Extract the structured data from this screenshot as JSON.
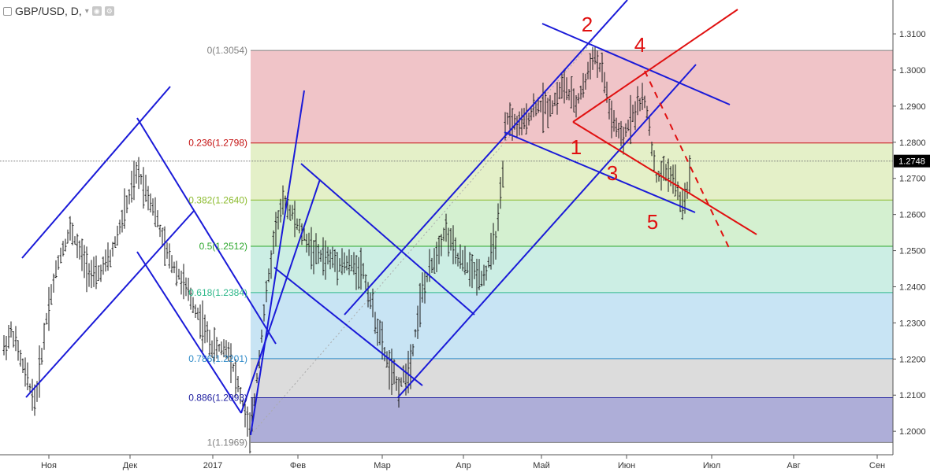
{
  "header": {
    "symbol_label": "GBP/USD, D,",
    "settings_icon": "gear-icon",
    "eye_icon": "eye-icon"
  },
  "price_axis": {
    "current_price": "1.2748",
    "current_color": "#000000"
  },
  "chart_data": {
    "type": "candlestick-ohlc",
    "instrument": "GBP/USD",
    "timeframe": "D",
    "ylim": [
      1.1935,
      1.3172
    ],
    "y_ticks": [
      "1.3100",
      "1.3000",
      "1.2900",
      "1.2800",
      "1.2700",
      "1.2600",
      "1.2500",
      "1.2400",
      "1.2300",
      "1.2200",
      "1.2100",
      "1.2000"
    ],
    "x_ticks": [
      "Ноя",
      "Дек",
      "2017",
      "Фев",
      "Мар",
      "Апр",
      "Май",
      "Июн",
      "Июл",
      "Авг",
      "Сен"
    ],
    "fibonacci": [
      {
        "label": "0(1.3054)",
        "level": 1.3054,
        "color": "#808080",
        "fill": "#f0c4c8"
      },
      {
        "label": "0.236(1.2798)",
        "level": 1.2798,
        "color": "#c41010",
        "fill": "#e4f0c8"
      },
      {
        "label": "0.382(1.2640)",
        "level": 1.264,
        "color": "#8cbb2e",
        "fill": "#d4f0d0"
      },
      {
        "label": "0.5(1.2512)",
        "level": 1.2512,
        "color": "#2ea82e",
        "fill": "#cceee4"
      },
      {
        "label": "0.618(1.2384)",
        "level": 1.2384,
        "color": "#2eb88a",
        "fill": "#c8e4f4"
      },
      {
        "label": "0.786(1.2201)",
        "level": 1.2201,
        "color": "#2e8ac8",
        "fill": "#dcdcdc"
      },
      {
        "label": "0.886(1.2093)",
        "level": 1.2093,
        "color": "#1a1a9e",
        "fill": "#aeaed8"
      },
      {
        "label": "1(1.1969)",
        "level": 1.1969,
        "color": "#808080",
        "fill": null
      }
    ],
    "wave_labels": [
      {
        "text": "2",
        "color": "#e01010"
      },
      {
        "text": "4",
        "color": "#e01010"
      },
      {
        "text": "1",
        "color": "#e01010"
      },
      {
        "text": "3",
        "color": "#e01010"
      },
      {
        "text": "5",
        "color": "#e01010"
      }
    ],
    "channel_color": "#1a1ad8",
    "wave_line_color": "#e01010",
    "bar_color": "#1a1a1a"
  }
}
